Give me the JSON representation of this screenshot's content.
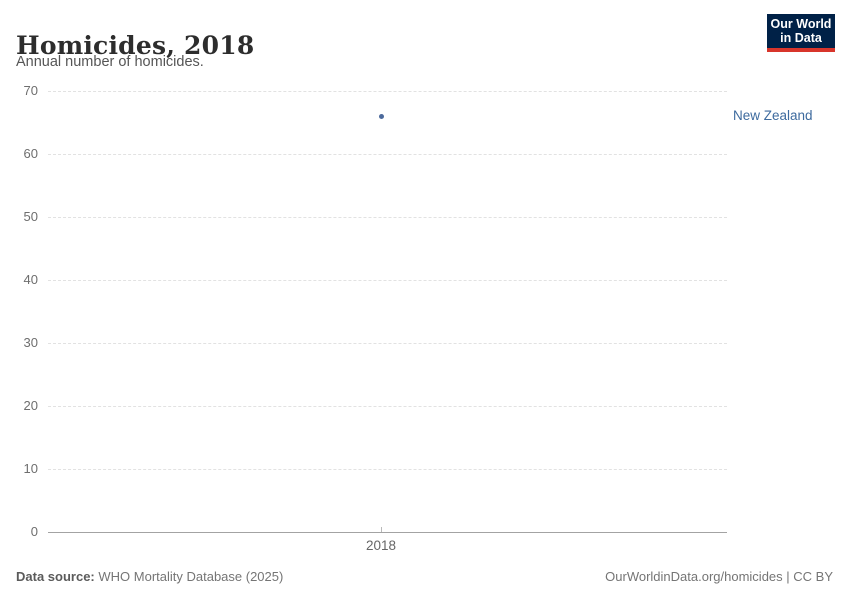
{
  "header": {
    "title": "Homicides, 2018",
    "subtitle": "Annual number of homicides.",
    "logo": {
      "line1": "Our World",
      "line2": "in Data",
      "bg_color": "#002147",
      "accent_color": "#d8352b"
    }
  },
  "chart_data": {
    "type": "scatter",
    "title": "Homicides, 2018",
    "subtitle": "Annual number of homicides.",
    "x": [
      2018
    ],
    "series": [
      {
        "name": "New Zealand",
        "values": [
          66
        ],
        "color": "#4c6a9c"
      }
    ],
    "xlabel": "",
    "ylabel": "",
    "ylim": [
      0,
      70
    ],
    "yticks": [
      0,
      10,
      20,
      30,
      40,
      50,
      60,
      70
    ],
    "xticks": [
      2018
    ],
    "grid": "horizontal-dashed",
    "legend_position": "right-of-point",
    "point_color": "#4c6a9c",
    "entity_label_color": "#3d6a9e"
  },
  "footer": {
    "datasource_label": "Data source:",
    "datasource_value": "WHO Mortality Database (2025)",
    "credit": "OurWorldinData.org/homicides | CC BY"
  }
}
